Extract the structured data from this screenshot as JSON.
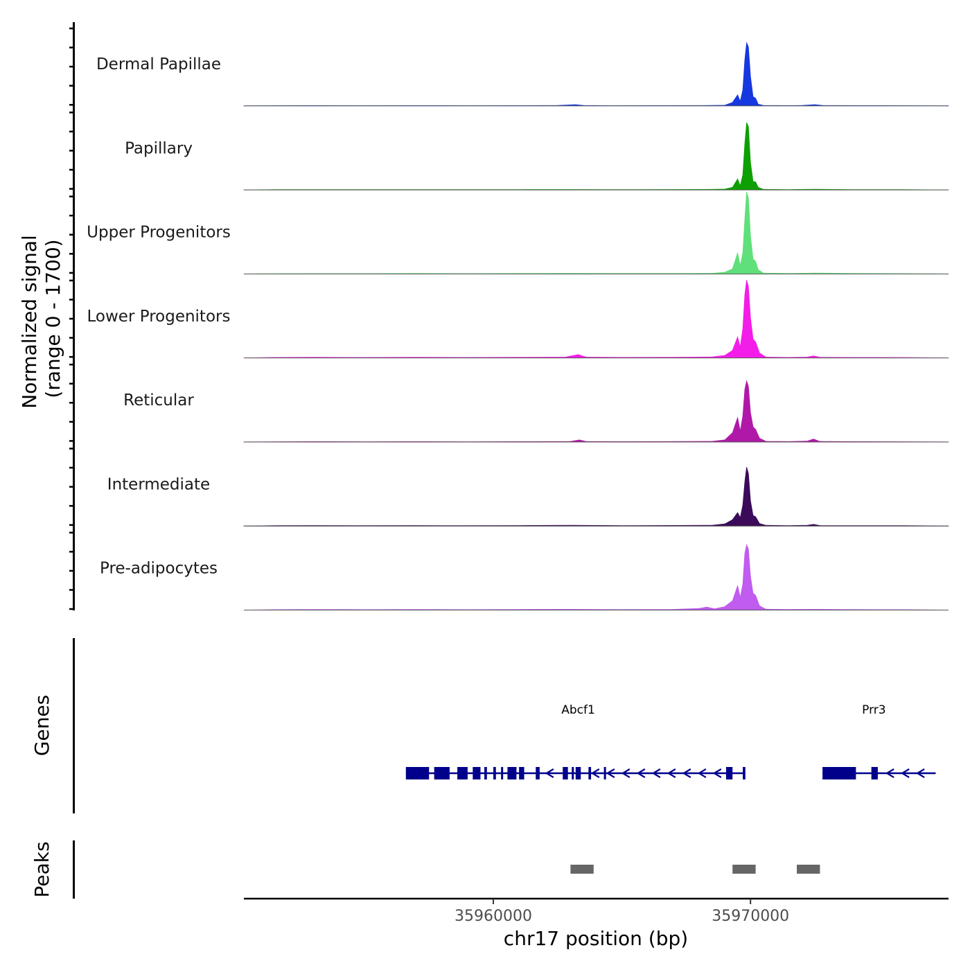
{
  "chart_data": {
    "type": "area",
    "chromosome": "chr17",
    "xlabel": "chr17 position (bp)",
    "ylabel_line1": "Normalized signal",
    "ylabel_line2": "(range 0 - 1700)",
    "x_range": [
      35950300,
      35977700
    ],
    "y_range": [
      0,
      1700
    ],
    "x_ticks": [
      35960000,
      35970000
    ],
    "x_tick_labels": [
      "35960000",
      "35970000"
    ],
    "tracks": [
      {
        "name": "Dermal Papillae",
        "color": "#1538e0",
        "points": [
          [
            35950300,
            0
          ],
          [
            35951500,
            4
          ],
          [
            35953000,
            6
          ],
          [
            35955000,
            4
          ],
          [
            35957000,
            6
          ],
          [
            35959000,
            4
          ],
          [
            35961000,
            6
          ],
          [
            35962500,
            10
          ],
          [
            35963200,
            30
          ],
          [
            35963500,
            10
          ],
          [
            35964500,
            4
          ],
          [
            35966000,
            6
          ],
          [
            35968000,
            8
          ],
          [
            35969000,
            14
          ],
          [
            35969300,
            80
          ],
          [
            35969500,
            260
          ],
          [
            35969600,
            110
          ],
          [
            35969700,
            380
          ],
          [
            35969780,
            1100
          ],
          [
            35969850,
            1500
          ],
          [
            35969920,
            1400
          ],
          [
            35970000,
            700
          ],
          [
            35970100,
            220
          ],
          [
            35970200,
            180
          ],
          [
            35970300,
            40
          ],
          [
            35970500,
            10
          ],
          [
            35971500,
            6
          ],
          [
            35972000,
            10
          ],
          [
            35972500,
            30
          ],
          [
            35972800,
            10
          ],
          [
            35974000,
            6
          ],
          [
            35976000,
            4
          ],
          [
            35977700,
            0
          ]
        ]
      },
      {
        "name": "Papillary",
        "color": "#0da000",
        "points": [
          [
            35950300,
            0
          ],
          [
            35951500,
            6
          ],
          [
            35953000,
            8
          ],
          [
            35955000,
            6
          ],
          [
            35957000,
            8
          ],
          [
            35959000,
            6
          ],
          [
            35961000,
            8
          ],
          [
            35963000,
            10
          ],
          [
            35965000,
            8
          ],
          [
            35967000,
            10
          ],
          [
            35968500,
            12
          ],
          [
            35969000,
            20
          ],
          [
            35969300,
            60
          ],
          [
            35969500,
            260
          ],
          [
            35969600,
            100
          ],
          [
            35969700,
            360
          ],
          [
            35969780,
            1100
          ],
          [
            35969850,
            1600
          ],
          [
            35969920,
            1500
          ],
          [
            35970000,
            650
          ],
          [
            35970100,
            200
          ],
          [
            35970200,
            190
          ],
          [
            35970300,
            60
          ],
          [
            35970500,
            12
          ],
          [
            35971500,
            8
          ],
          [
            35972500,
            14
          ],
          [
            35974000,
            8
          ],
          [
            35976000,
            6
          ],
          [
            35977700,
            0
          ]
        ]
      },
      {
        "name": "Upper Progenitors",
        "color": "#5fe07a",
        "points": [
          [
            35950300,
            0
          ],
          [
            35951500,
            6
          ],
          [
            35953000,
            8
          ],
          [
            35955000,
            8
          ],
          [
            35957000,
            10
          ],
          [
            35959000,
            8
          ],
          [
            35961000,
            10
          ],
          [
            35963000,
            14
          ],
          [
            35965000,
            10
          ],
          [
            35967000,
            12
          ],
          [
            35968500,
            14
          ],
          [
            35969000,
            40
          ],
          [
            35969300,
            120
          ],
          [
            35969500,
            500
          ],
          [
            35969600,
            200
          ],
          [
            35969700,
            500
          ],
          [
            35969780,
            1300
          ],
          [
            35969850,
            1950
          ],
          [
            35969920,
            1800
          ],
          [
            35970000,
            900
          ],
          [
            35970100,
            350
          ],
          [
            35970200,
            300
          ],
          [
            35970300,
            100
          ],
          [
            35970500,
            20
          ],
          [
            35971500,
            10
          ],
          [
            35972500,
            20
          ],
          [
            35974000,
            10
          ],
          [
            35976000,
            8
          ],
          [
            35977700,
            0
          ]
        ]
      },
      {
        "name": "Lower Progenitors",
        "color": "#f41ce8",
        "points": [
          [
            35950300,
            0
          ],
          [
            35951500,
            12
          ],
          [
            35953000,
            16
          ],
          [
            35955000,
            12
          ],
          [
            35957000,
            16
          ],
          [
            35959000,
            12
          ],
          [
            35961000,
            16
          ],
          [
            35962800,
            20
          ],
          [
            35963300,
            80
          ],
          [
            35963600,
            20
          ],
          [
            35965000,
            14
          ],
          [
            35967000,
            16
          ],
          [
            35968500,
            24
          ],
          [
            35969000,
            60
          ],
          [
            35969300,
            180
          ],
          [
            35969500,
            500
          ],
          [
            35969600,
            260
          ],
          [
            35969700,
            700
          ],
          [
            35969780,
            1500
          ],
          [
            35969850,
            1850
          ],
          [
            35969920,
            1700
          ],
          [
            35970000,
            950
          ],
          [
            35970100,
            450
          ],
          [
            35970200,
            380
          ],
          [
            35970350,
            120
          ],
          [
            35970600,
            20
          ],
          [
            35971500,
            12
          ],
          [
            35972200,
            20
          ],
          [
            35972450,
            50
          ],
          [
            35972700,
            16
          ],
          [
            35974000,
            12
          ],
          [
            35976000,
            10
          ],
          [
            35977700,
            0
          ]
        ]
      },
      {
        "name": "Reticular",
        "color": "#b019a8",
        "points": [
          [
            35950300,
            0
          ],
          [
            35951500,
            4
          ],
          [
            35953000,
            8
          ],
          [
            35955000,
            6
          ],
          [
            35957000,
            8
          ],
          [
            35959000,
            6
          ],
          [
            35961000,
            8
          ],
          [
            35963000,
            14
          ],
          [
            35963350,
            50
          ],
          [
            35963600,
            12
          ],
          [
            35965000,
            8
          ],
          [
            35967000,
            10
          ],
          [
            35968500,
            16
          ],
          [
            35969000,
            50
          ],
          [
            35969300,
            220
          ],
          [
            35969500,
            580
          ],
          [
            35969600,
            260
          ],
          [
            35969700,
            620
          ],
          [
            35969780,
            1250
          ],
          [
            35969850,
            1450
          ],
          [
            35969920,
            1320
          ],
          [
            35970000,
            700
          ],
          [
            35970100,
            360
          ],
          [
            35970200,
            300
          ],
          [
            35970350,
            90
          ],
          [
            35970600,
            16
          ],
          [
            35971500,
            10
          ],
          [
            35972200,
            20
          ],
          [
            35972450,
            70
          ],
          [
            35972700,
            12
          ],
          [
            35974000,
            8
          ],
          [
            35976000,
            6
          ],
          [
            35977700,
            0
          ]
        ]
      },
      {
        "name": "Intermediate",
        "color": "#3b0b5a",
        "points": [
          [
            35950300,
            0
          ],
          [
            35951500,
            8
          ],
          [
            35953000,
            12
          ],
          [
            35955000,
            8
          ],
          [
            35957000,
            12
          ],
          [
            35959000,
            8
          ],
          [
            35961000,
            12
          ],
          [
            35963000,
            16
          ],
          [
            35965000,
            10
          ],
          [
            35967000,
            14
          ],
          [
            35968500,
            18
          ],
          [
            35969000,
            50
          ],
          [
            35969300,
            150
          ],
          [
            35969500,
            320
          ],
          [
            35969600,
            200
          ],
          [
            35969700,
            500
          ],
          [
            35969780,
            1050
          ],
          [
            35969850,
            1400
          ],
          [
            35969920,
            1250
          ],
          [
            35970000,
            600
          ],
          [
            35970100,
            250
          ],
          [
            35970200,
            220
          ],
          [
            35970350,
            60
          ],
          [
            35970600,
            16
          ],
          [
            35971500,
            10
          ],
          [
            35972200,
            16
          ],
          [
            35972450,
            40
          ],
          [
            35972700,
            12
          ],
          [
            35974000,
            10
          ],
          [
            35976000,
            8
          ],
          [
            35977700,
            0
          ]
        ]
      },
      {
        "name": "Pre-adipocytes",
        "color": "#c05cf0",
        "points": [
          [
            35950300,
            0
          ],
          [
            35951500,
            10
          ],
          [
            35953000,
            14
          ],
          [
            35955000,
            10
          ],
          [
            35957000,
            14
          ],
          [
            35959000,
            10
          ],
          [
            35961000,
            14
          ],
          [
            35963000,
            18
          ],
          [
            35965000,
            12
          ],
          [
            35967000,
            16
          ],
          [
            35968000,
            40
          ],
          [
            35968300,
            70
          ],
          [
            35968600,
            30
          ],
          [
            35969000,
            80
          ],
          [
            35969300,
            220
          ],
          [
            35969500,
            580
          ],
          [
            35969600,
            300
          ],
          [
            35969700,
            620
          ],
          [
            35969780,
            1350
          ],
          [
            35969850,
            1550
          ],
          [
            35969920,
            1450
          ],
          [
            35970000,
            800
          ],
          [
            35970100,
            400
          ],
          [
            35970200,
            350
          ],
          [
            35970350,
            100
          ],
          [
            35970600,
            20
          ],
          [
            35971500,
            14
          ],
          [
            35972500,
            18
          ],
          [
            35974000,
            12
          ],
          [
            35976000,
            10
          ],
          [
            35977700,
            0
          ]
        ]
      }
    ],
    "genes": [
      {
        "name": "Abcf1",
        "strand": "-",
        "start": 35956600,
        "end": 35969800,
        "color": "#00008b",
        "exons": [
          [
            35956600,
            35957500
          ],
          [
            35957700,
            35958300
          ],
          [
            35958600,
            35959000
          ],
          [
            35959200,
            35959500
          ],
          [
            35959650,
            35959750
          ],
          [
            35960000,
            35960100
          ],
          [
            35960300,
            35960350
          ],
          [
            35960550,
            35960900
          ],
          [
            35961000,
            35961200
          ],
          [
            35961650,
            35961800
          ],
          [
            35962700,
            35962900
          ],
          [
            35963050,
            35963100
          ],
          [
            35963200,
            35963400
          ],
          [
            35963700,
            35963800
          ],
          [
            35964300,
            35964350
          ],
          [
            35969050,
            35969300
          ],
          [
            35969700,
            35969800
          ]
        ]
      },
      {
        "name": "Prr3",
        "strand": "-",
        "start": 35972800,
        "end": 35977200,
        "color": "#00008b",
        "exons": [
          [
            35972800,
            35974100
          ],
          [
            35974700,
            35974950
          ]
        ]
      }
    ],
    "peaks": [
      [
        35963000,
        35963900
      ],
      [
        35969300,
        35970200
      ],
      [
        35971800,
        35972700
      ]
    ],
    "peak_color": "#666666",
    "track_label_genes": "Genes",
    "track_label_peaks": "Peaks"
  }
}
